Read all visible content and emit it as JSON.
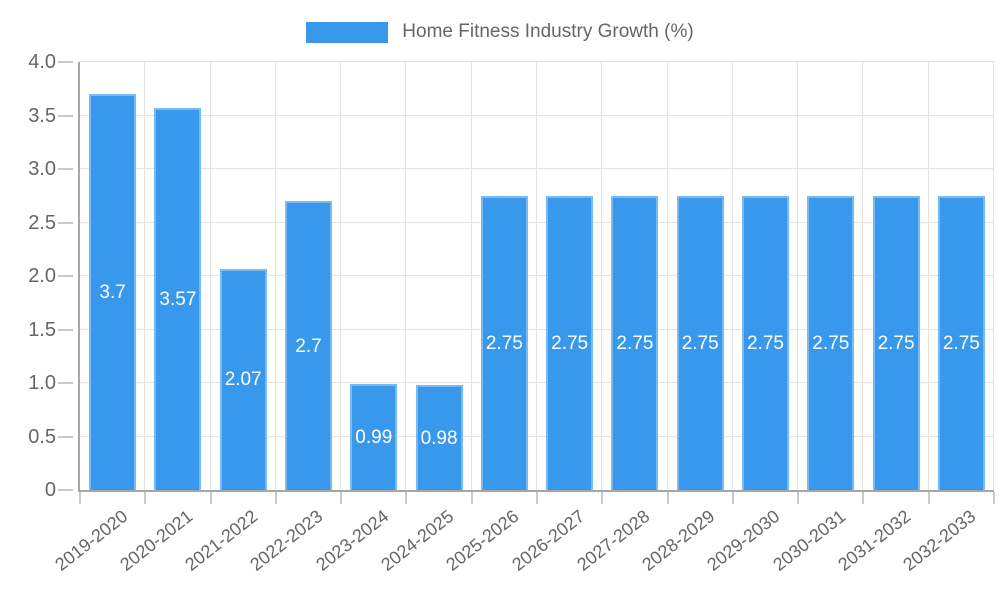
{
  "legend": {
    "label": "Home Fitness Industry Growth (%)"
  },
  "chart_data": {
    "type": "bar",
    "title": "Home Fitness Industry Growth (%)",
    "legend_position": "top",
    "grid": true,
    "categories": [
      "2019-2020",
      "2020-2021",
      "2021-2022",
      "2022-2023",
      "2023-2024",
      "2024-2025",
      "2025-2026",
      "2026-2027",
      "2027-2028",
      "2028-2029",
      "2029-2030",
      "2030-2031",
      "2031-2032",
      "2032-2033"
    ],
    "values": [
      3.7,
      3.57,
      2.07,
      2.7,
      0.99,
      0.98,
      2.75,
      2.75,
      2.75,
      2.75,
      2.75,
      2.75,
      2.75,
      2.75
    ],
    "value_labels": [
      "3.7",
      "3.57",
      "2.07",
      "2.7",
      "0.99",
      "0.98",
      "2.75",
      "2.75",
      "2.75",
      "2.75",
      "2.75",
      "2.75",
      "2.75",
      "2.75"
    ],
    "xlabel": "",
    "ylabel": "",
    "ylim": [
      0,
      4
    ],
    "ytick_step": 0.5,
    "ytick_labels": [
      "4.0",
      "3.5",
      "3.0",
      "2.5",
      "2.0",
      "1.5",
      "1.0",
      "0.5",
      "0"
    ],
    "colors": {
      "bar": "#3898ec",
      "bar_edge": "#79baf2",
      "bar_label": "#ffffff",
      "axis_text": "#666666",
      "grid": "#e2e2e2",
      "tick": "#c9c9c9",
      "axis_border": "#a6a6a6"
    }
  }
}
